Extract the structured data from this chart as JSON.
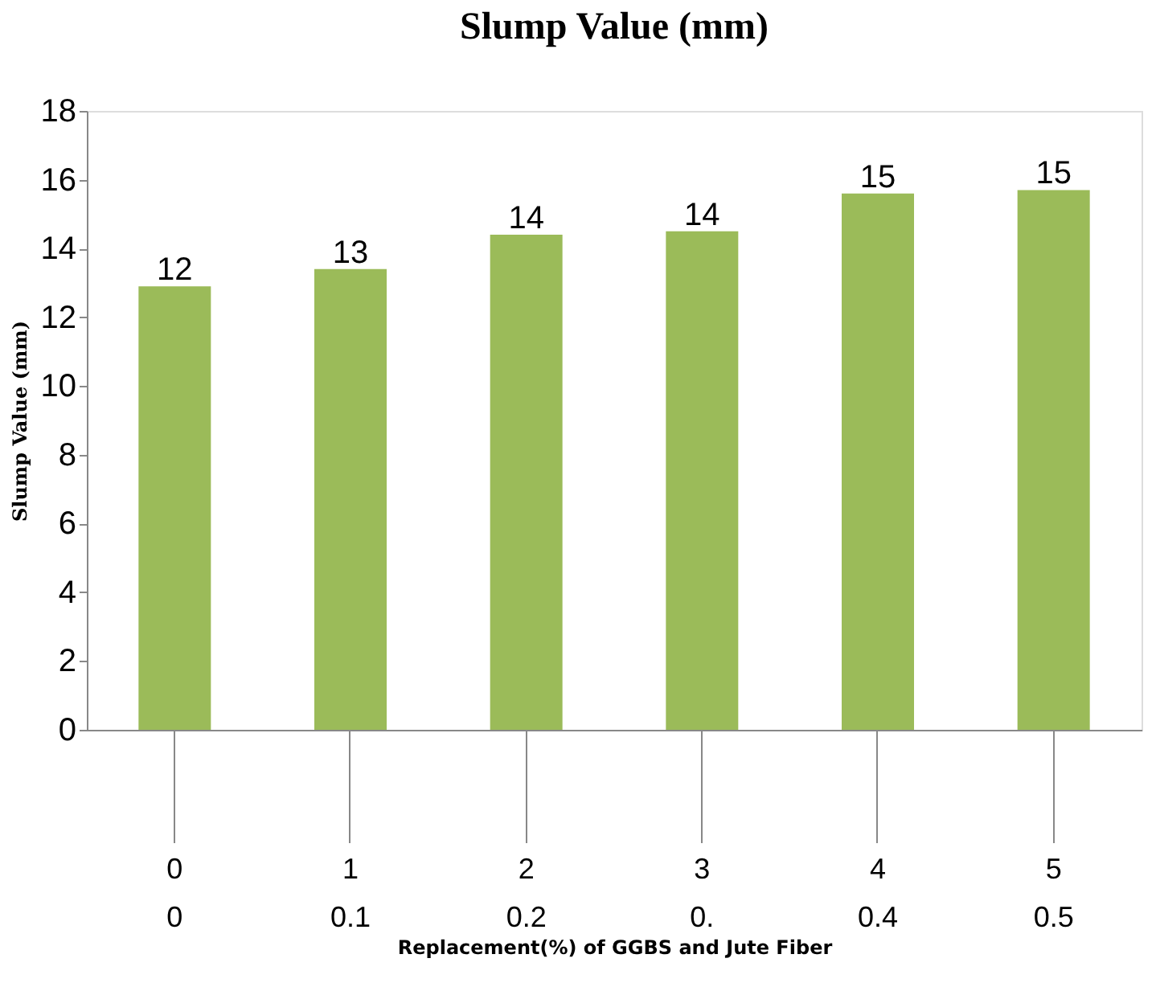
{
  "chart_data": {
    "type": "bar",
    "title": "Slump Value (mm)",
    "xlabel": "Replacement(%) of GGBS and Jute Fiber",
    "ylabel": "Slump Value (mm)",
    "categories": [
      "0\n0",
      "1\n0.1",
      "2\n0.2",
      "3\n0.",
      "4\n0.4",
      "5\n0.5"
    ],
    "values": [
      12.9,
      13.4,
      14.4,
      14.5,
      15.6,
      15.7
    ],
    "annotations": [
      {
        "text": "12",
        "x": "0\n0",
        "y": 12.9
      },
      {
        "text": "13",
        "x": "1\n0.1",
        "y": 13.4
      },
      {
        "text": "14",
        "x": "2\n0.2",
        "y": 14.4
      },
      {
        "text": "14",
        "x": "3\n0.",
        "y": 14.5
      },
      {
        "text": "15",
        "x": "4\n0.4",
        "y": 15.6
      },
      {
        "text": "15",
        "x": "5\n0.5",
        "y": 15.7
      }
    ],
    "color": "#9bbb59",
    "ylim": [
      0,
      18
    ],
    "yticks": [
      0,
      2,
      4,
      6,
      8,
      10,
      12,
      14,
      16,
      18
    ],
    "grid": false
  }
}
